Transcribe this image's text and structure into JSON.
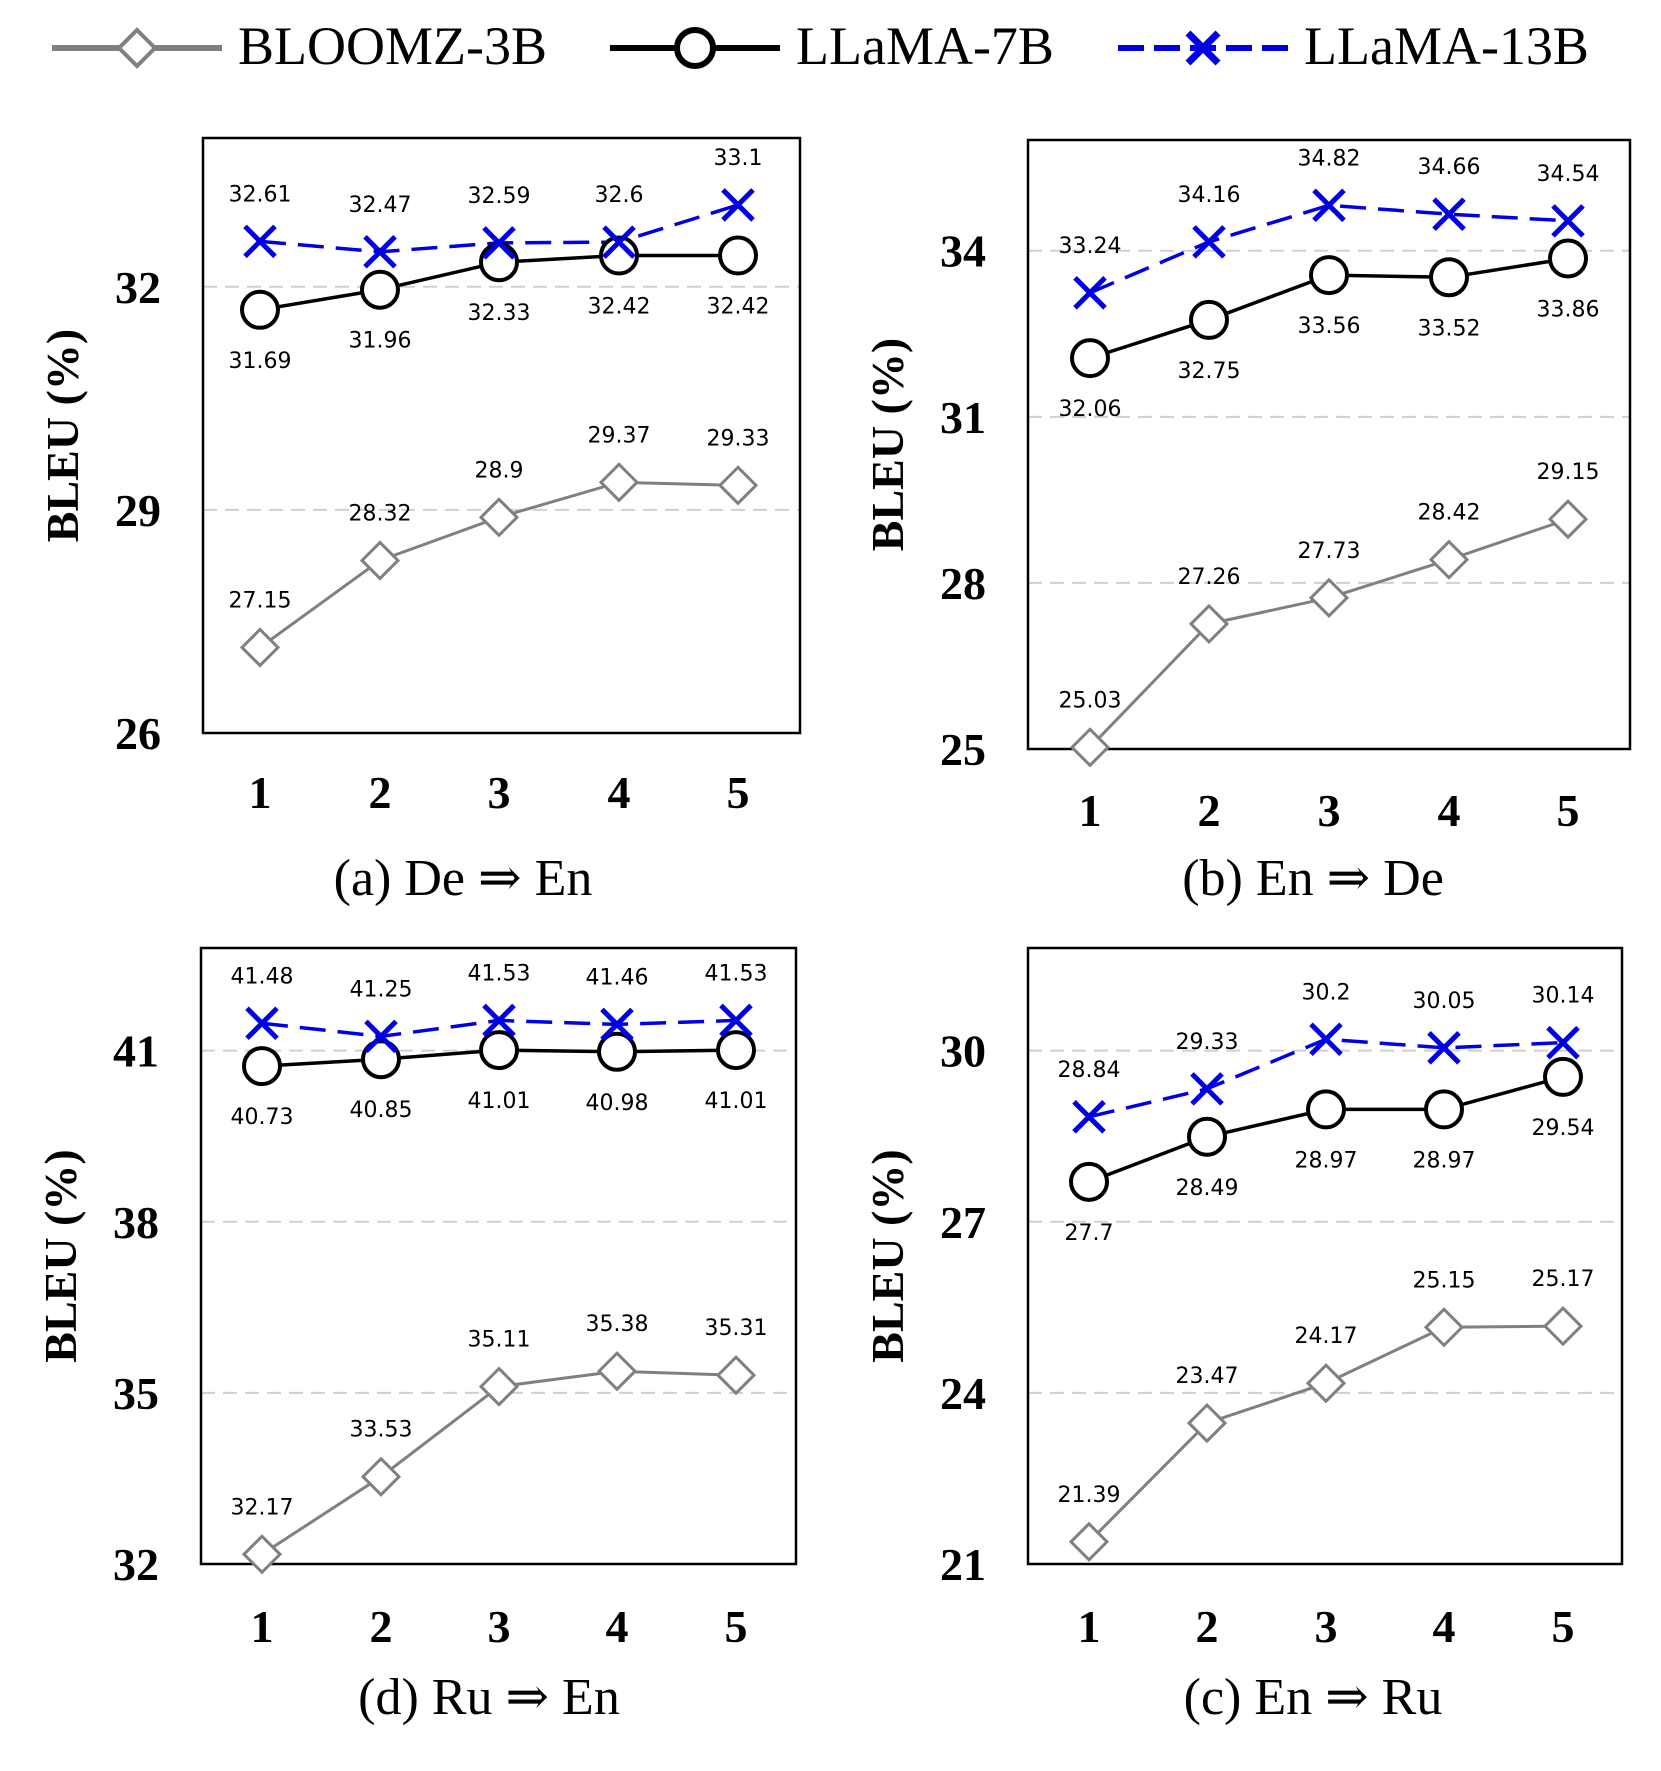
{
  "legend": [
    {
      "name": "BLOOMZ-3B",
      "color": "#808080",
      "marker": "diamond",
      "dash": "solid"
    },
    {
      "name": "LLaMA-7B",
      "color": "#000000",
      "marker": "circle",
      "dash": "solid"
    },
    {
      "name": "LLaMA-13B",
      "color": "#0000e6",
      "marker": "x",
      "dash": "dashed"
    }
  ],
  "chart_data": [
    {
      "type": "line",
      "caption": "(a) De ⇒ En",
      "ylabel": "BLEU (%)",
      "categories": [
        "1",
        "2",
        "3",
        "4",
        "5"
      ],
      "ylim": [
        26,
        34
      ],
      "yticks": [
        "26",
        "29",
        "32"
      ],
      "series": [
        {
          "name": "BLOOMZ-3B",
          "values": [
            27.15,
            28.32,
            28.9,
            29.37,
            29.33
          ],
          "labels": [
            "27.15",
            "28.32",
            "28.9",
            "29.37",
            "29.33"
          ]
        },
        {
          "name": "LLaMA-7B",
          "values": [
            31.69,
            31.96,
            32.33,
            32.42,
            32.42
          ],
          "labels": [
            "31.69",
            "31.96",
            "32.33",
            "32.42",
            "32.42"
          ]
        },
        {
          "name": "LLaMA-13B",
          "values": [
            32.61,
            32.47,
            32.59,
            32.6,
            33.1
          ],
          "labels": [
            "32.61",
            "32.47",
            "32.59",
            "32.6",
            "33.1"
          ]
        }
      ]
    },
    {
      "type": "line",
      "caption": "(b) En ⇒ De",
      "ylabel": "BLEU (%)",
      "categories": [
        "1",
        "2",
        "3",
        "4",
        "5"
      ],
      "ylim": [
        25,
        36
      ],
      "yticks": [
        "25",
        "28",
        "31",
        "34"
      ],
      "series": [
        {
          "name": "BLOOMZ-3B",
          "values": [
            25.03,
            27.26,
            27.73,
            28.42,
            29.15
          ],
          "labels": [
            "25.03",
            "27.26",
            "27.73",
            "28.42",
            "29.15"
          ]
        },
        {
          "name": "LLaMA-7B",
          "values": [
            32.06,
            32.75,
            33.56,
            33.52,
            33.86
          ],
          "labels": [
            "32.06",
            "32.75",
            "33.56",
            "33.52",
            "33.86"
          ]
        },
        {
          "name": "LLaMA-13B",
          "values": [
            33.24,
            34.16,
            34.82,
            34.66,
            34.54
          ],
          "labels": [
            "33.24",
            "34.16",
            "34.82",
            "34.66",
            "34.54"
          ]
        }
      ]
    },
    {
      "type": "line",
      "caption": "(d) Ru ⇒ En",
      "ylabel": "BLEU (%)",
      "categories": [
        "1",
        "2",
        "3",
        "4",
        "5"
      ],
      "ylim": [
        32,
        42.8
      ],
      "yticks": [
        "32",
        "35",
        "38",
        "41"
      ],
      "series": [
        {
          "name": "BLOOMZ-3B",
          "values": [
            32.17,
            33.53,
            35.11,
            35.38,
            35.31
          ],
          "labels": [
            "32.17",
            "33.53",
            "35.11",
            "35.38",
            "35.31"
          ]
        },
        {
          "name": "LLaMA-7B",
          "values": [
            40.73,
            40.85,
            41.01,
            40.98,
            41.01
          ],
          "labels": [
            "40.73",
            "40.85",
            "41.01",
            "40.98",
            "41.01"
          ]
        },
        {
          "name": "LLaMA-13B",
          "values": [
            41.48,
            41.25,
            41.53,
            41.46,
            41.53
          ],
          "labels": [
            "41.48",
            "41.25",
            "41.53",
            "41.46",
            "41.53"
          ]
        }
      ]
    },
    {
      "type": "line",
      "caption": "(c) En ⇒ Ru",
      "ylabel": "BLEU (%)",
      "categories": [
        "1",
        "2",
        "3",
        "4",
        "5"
      ],
      "ylim": [
        21,
        31.8
      ],
      "yticks": [
        "21",
        "24",
        "27",
        "30"
      ],
      "series": [
        {
          "name": "BLOOMZ-3B",
          "values": [
            21.39,
            23.47,
            24.17,
            25.15,
            25.17
          ],
          "labels": [
            "21.39",
            "23.47",
            "24.17",
            "25.15",
            "25.17"
          ]
        },
        {
          "name": "LLaMA-7B",
          "values": [
            27.7,
            28.49,
            28.97,
            28.97,
            29.54
          ],
          "labels": [
            "27.7",
            "28.49",
            "28.97",
            "28.97",
            "29.54"
          ]
        },
        {
          "name": "LLaMA-13B",
          "values": [
            28.84,
            29.33,
            30.2,
            30.05,
            30.14
          ],
          "labels": [
            "28.84",
            "29.33",
            "30.2",
            "30.05",
            "30.14"
          ]
        }
      ]
    }
  ]
}
